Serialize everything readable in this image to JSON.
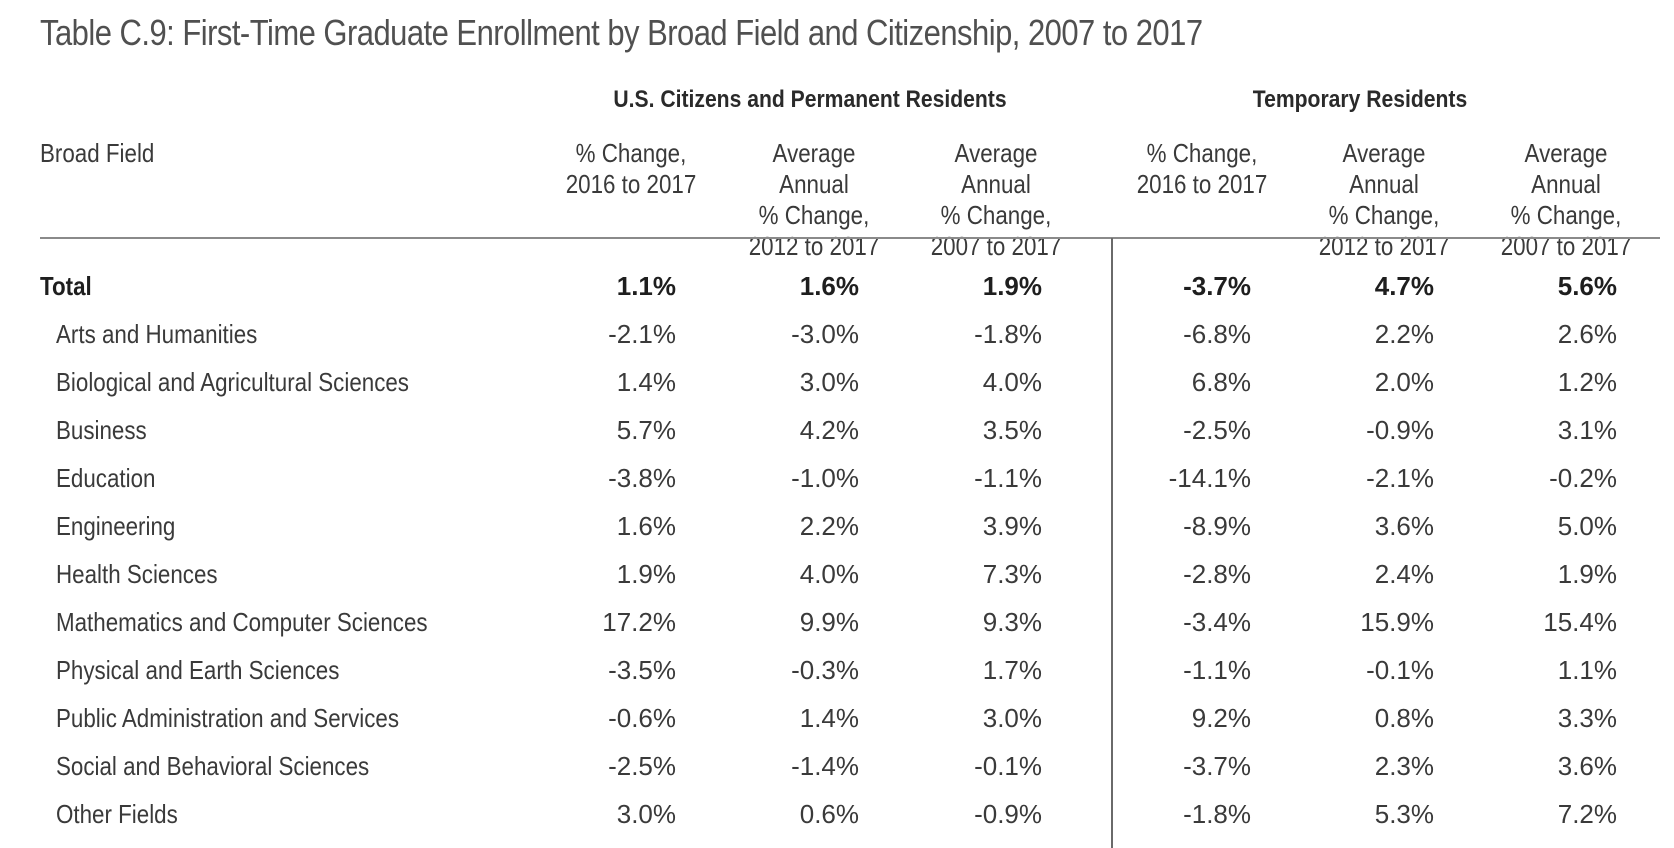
{
  "title": "Table C.9: First-Time Graduate Enrollment by Broad Field and Citizenship, 2007 to 2017",
  "groups": {
    "us": "U.S. Citizens and Permanent Residents",
    "temp": "Temporary Residents"
  },
  "header": {
    "broad_field": "Broad Field",
    "col1": "% Change,\n2016 to 2017",
    "col2": "Average Annual\n% Change,\n2012 to 2017",
    "col3": "Average Annual\n% Change,\n2007 to 2017",
    "col4": "% Change,\n2016 to 2017",
    "col5": "Average Annual\n% Change,\n2012 to 2017",
    "col6": "Average Annual\n% Change,\n2007 to 2017"
  },
  "rows": [
    {
      "field": "Total",
      "values": [
        "1.1%",
        "1.6%",
        "1.9%",
        "-3.7%",
        "4.7%",
        "5.6%"
      ]
    },
    {
      "field": "Arts and Humanities",
      "values": [
        "-2.1%",
        "-3.0%",
        "-1.8%",
        "-6.8%",
        "2.2%",
        "2.6%"
      ]
    },
    {
      "field": "Biological and Agricultural Sciences",
      "values": [
        "1.4%",
        "3.0%",
        "4.0%",
        "6.8%",
        "2.0%",
        "1.2%"
      ]
    },
    {
      "field": "Business",
      "values": [
        "5.7%",
        "4.2%",
        "3.5%",
        "-2.5%",
        "-0.9%",
        "3.1%"
      ]
    },
    {
      "field": "Education",
      "values": [
        "-3.8%",
        "-1.0%",
        "-1.1%",
        "-14.1%",
        "-2.1%",
        "-0.2%"
      ]
    },
    {
      "field": "Engineering",
      "values": [
        "1.6%",
        "2.2%",
        "3.9%",
        "-8.9%",
        "3.6%",
        "5.0%"
      ]
    },
    {
      "field": "Health Sciences",
      "values": [
        "1.9%",
        "4.0%",
        "7.3%",
        "-2.8%",
        "2.4%",
        "1.9%"
      ]
    },
    {
      "field": "Mathematics and Computer Sciences",
      "values": [
        "17.2%",
        "9.9%",
        "9.3%",
        "-3.4%",
        "15.9%",
        "15.4%"
      ]
    },
    {
      "field": "Physical and Earth Sciences",
      "values": [
        "-3.5%",
        "-0.3%",
        "1.7%",
        "-1.1%",
        "-0.1%",
        "1.1%"
      ]
    },
    {
      "field": "Public Administration and Services",
      "values": [
        "-0.6%",
        "1.4%",
        "3.0%",
        "9.2%",
        "0.8%",
        "3.3%"
      ]
    },
    {
      "field": "Social and Behavioral Sciences",
      "values": [
        "-2.5%",
        "-1.4%",
        "-0.1%",
        "-3.7%",
        "2.3%",
        "3.6%"
      ]
    },
    {
      "field": "Other Fields",
      "values": [
        "3.0%",
        "0.6%",
        "-0.9%",
        "-1.8%",
        "5.3%",
        "7.2%"
      ]
    }
  ]
}
